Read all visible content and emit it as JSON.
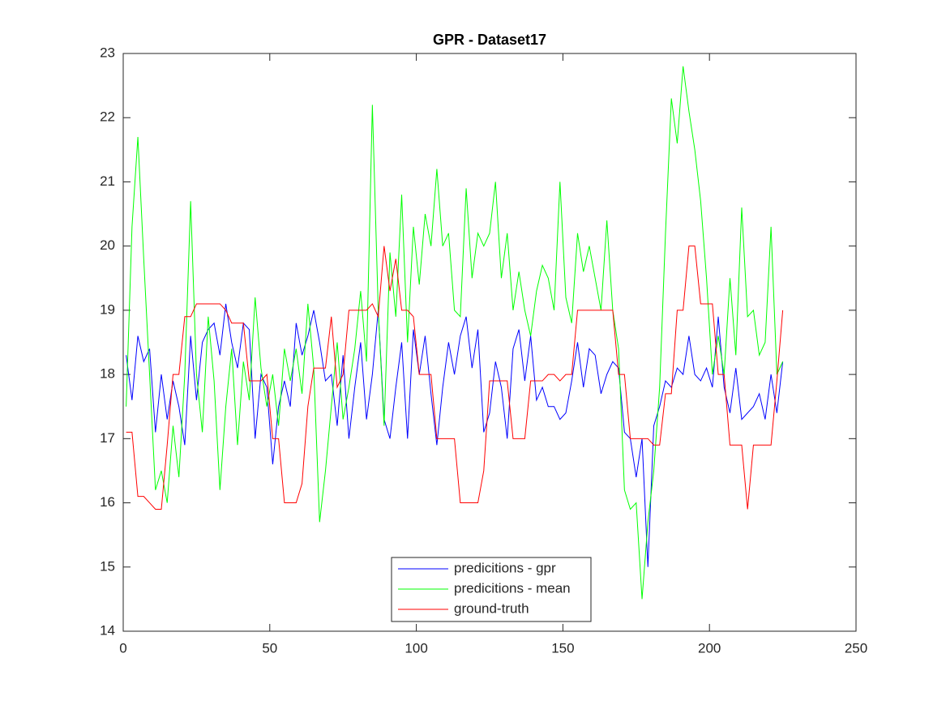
{
  "chart_data": {
    "type": "line",
    "title": "GPR - Dataset17",
    "x": [
      1,
      3,
      5,
      7,
      9,
      11,
      13,
      15,
      17,
      19,
      21,
      23,
      25,
      27,
      29,
      31,
      33,
      35,
      37,
      39,
      41,
      43,
      45,
      47,
      49,
      51,
      53,
      55,
      57,
      59,
      61,
      63,
      65,
      67,
      69,
      71,
      73,
      75,
      77,
      79,
      81,
      83,
      85,
      87,
      89,
      91,
      93,
      95,
      97,
      99,
      101,
      103,
      105,
      107,
      109,
      111,
      113,
      115,
      117,
      119,
      121,
      123,
      125,
      127,
      129,
      131,
      133,
      135,
      137,
      139,
      141,
      143,
      145,
      147,
      149,
      151,
      153,
      155,
      157,
      159,
      161,
      163,
      165,
      167,
      169,
      171,
      173,
      175,
      177,
      179,
      181,
      183,
      185,
      187,
      189,
      191,
      193,
      195,
      197,
      199,
      201,
      203,
      205,
      207,
      209,
      211,
      213,
      215,
      217,
      219,
      221,
      223,
      225
    ],
    "series": [
      {
        "name": "predicitions - gpr",
        "color": "#0000ff",
        "values": [
          18.3,
          17.6,
          18.6,
          18.2,
          18.4,
          17.1,
          18.0,
          17.3,
          17.9,
          17.5,
          16.9,
          18.6,
          17.6,
          18.5,
          18.7,
          18.8,
          18.3,
          19.1,
          18.5,
          18.1,
          18.8,
          18.7,
          17.0,
          18.0,
          17.8,
          16.6,
          17.5,
          17.9,
          17.5,
          18.8,
          18.3,
          18.6,
          19.0,
          18.5,
          17.9,
          18.0,
          17.2,
          18.3,
          17.0,
          17.8,
          18.5,
          17.3,
          18.0,
          19.0,
          17.3,
          17.0,
          17.8,
          18.5,
          17.0,
          18.7,
          18.0,
          18.6,
          17.7,
          16.9,
          17.8,
          18.5,
          18.0,
          18.6,
          18.9,
          18.1,
          18.7,
          17.1,
          17.4,
          18.2,
          17.8,
          17.0,
          18.4,
          18.7,
          17.9,
          18.6,
          17.6,
          17.8,
          17.5,
          17.5,
          17.3,
          17.4,
          17.9,
          18.5,
          17.8,
          18.4,
          18.3,
          17.7,
          18.0,
          18.2,
          18.1,
          17.1,
          17.0,
          16.4,
          17.0,
          15.0,
          17.2,
          17.5,
          17.9,
          17.8,
          18.1,
          18.0,
          18.6,
          18.0,
          17.9,
          18.1,
          17.8,
          18.9,
          17.8,
          17.4,
          18.1,
          17.3,
          17.4,
          17.5,
          17.7,
          17.3,
          18.0,
          17.4,
          18.2
        ]
      },
      {
        "name": "predicitions - mean",
        "color": "#00ff00",
        "values": [
          17.5,
          20.3,
          21.7,
          19.8,
          18.0,
          16.2,
          16.5,
          16.0,
          17.2,
          16.4,
          18.0,
          20.7,
          18.0,
          17.1,
          18.9,
          17.9,
          16.2,
          17.5,
          18.4,
          16.9,
          18.2,
          17.6,
          19.2,
          18.1,
          17.5,
          18.0,
          17.2,
          18.4,
          17.9,
          18.4,
          17.7,
          19.1,
          18.1,
          15.7,
          16.5,
          17.5,
          18.5,
          17.3,
          17.8,
          18.4,
          19.3,
          18.2,
          22.2,
          19.0,
          17.2,
          19.9,
          18.9,
          20.8,
          18.5,
          20.3,
          19.4,
          20.5,
          20.0,
          21.2,
          20.0,
          20.2,
          19.0,
          18.9,
          20.9,
          19.5,
          20.2,
          20.0,
          20.2,
          21.0,
          19.5,
          20.2,
          19.0,
          19.6,
          19.0,
          18.6,
          19.3,
          19.7,
          19.5,
          19.0,
          21.0,
          19.2,
          18.8,
          20.2,
          19.6,
          20.0,
          19.5,
          19.0,
          20.4,
          19.0,
          18.4,
          16.2,
          15.9,
          16.0,
          14.5,
          15.7,
          16.5,
          17.8,
          20.2,
          22.3,
          21.6,
          22.8,
          22.1,
          21.5,
          20.7,
          19.5,
          18.0,
          18.6,
          18.0,
          19.5,
          18.3,
          20.6,
          18.9,
          19.0,
          18.3,
          18.5,
          20.3,
          18.0,
          18.2
        ]
      },
      {
        "name": "ground-truth",
        "color": "#ff0000",
        "values": [
          17.1,
          17.1,
          16.1,
          16.1,
          16.0,
          15.9,
          15.9,
          16.9,
          18.0,
          18.0,
          18.9,
          18.9,
          19.1,
          19.1,
          19.1,
          19.1,
          19.1,
          19.0,
          18.8,
          18.8,
          18.8,
          17.9,
          17.9,
          17.9,
          18.0,
          17.0,
          17.0,
          16.0,
          16.0,
          16.0,
          16.3,
          17.5,
          18.1,
          18.1,
          18.1,
          18.9,
          17.8,
          18.0,
          19.0,
          19.0,
          19.0,
          19.0,
          19.1,
          18.9,
          20.0,
          19.3,
          19.8,
          19.0,
          19.0,
          18.9,
          18.0,
          18.0,
          18.0,
          17.0,
          17.0,
          17.0,
          17.0,
          16.0,
          16.0,
          16.0,
          16.0,
          16.5,
          17.9,
          17.9,
          17.9,
          17.9,
          17.0,
          17.0,
          17.0,
          17.9,
          17.9,
          17.9,
          18.0,
          18.0,
          17.9,
          18.0,
          18.0,
          19.0,
          19.0,
          19.0,
          19.0,
          19.0,
          19.0,
          19.0,
          18.0,
          18.0,
          17.0,
          17.0,
          17.0,
          17.0,
          16.9,
          16.9,
          17.7,
          17.7,
          19.0,
          19.0,
          20.0,
          20.0,
          19.1,
          19.1,
          19.1,
          18.0,
          18.0,
          16.9,
          16.9,
          16.9,
          15.9,
          16.9,
          16.9,
          16.9,
          16.9,
          17.9,
          19.0
        ]
      }
    ],
    "xlim": [
      0,
      250
    ],
    "xticks": [
      0,
      50,
      100,
      150,
      200,
      250
    ],
    "ylim": [
      14,
      23
    ],
    "yticks": [
      14,
      15,
      16,
      17,
      18,
      19,
      20,
      21,
      22,
      23
    ],
    "legend": "south"
  }
}
